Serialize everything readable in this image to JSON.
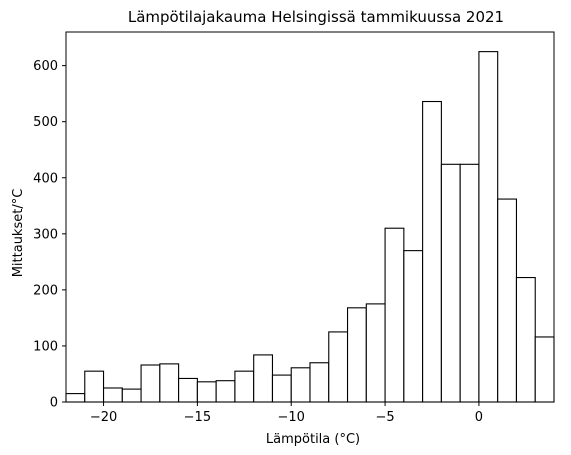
{
  "chart_data": {
    "type": "bar",
    "title": "Lämpötilajakauma Helsingissä tammikuussa 2021",
    "xlabel": "Lämpötila (°C)",
    "ylabel": "Mittaukset/°C",
    "xlim": [
      -22,
      4
    ],
    "ylim": [
      0,
      660
    ],
    "grid": false,
    "bin_width": 1,
    "bins": [
      {
        "x0": -22,
        "x1": -21,
        "value": 15
      },
      {
        "x0": -21,
        "x1": -20,
        "value": 55
      },
      {
        "x0": -20,
        "x1": -19,
        "value": 25
      },
      {
        "x0": -19,
        "x1": -18,
        "value": 23
      },
      {
        "x0": -18,
        "x1": -17,
        "value": 66
      },
      {
        "x0": -17,
        "x1": -16,
        "value": 68
      },
      {
        "x0": -16,
        "x1": -15,
        "value": 42
      },
      {
        "x0": -15,
        "x1": -14,
        "value": 36
      },
      {
        "x0": -14,
        "x1": -13,
        "value": 38
      },
      {
        "x0": -13,
        "x1": -12,
        "value": 55
      },
      {
        "x0": -12,
        "x1": -11,
        "value": 84
      },
      {
        "x0": -11,
        "x1": -10,
        "value": 48
      },
      {
        "x0": -10,
        "x1": -9,
        "value": 61
      },
      {
        "x0": -9,
        "x1": -8,
        "value": 70
      },
      {
        "x0": -8,
        "x1": -7,
        "value": 125
      },
      {
        "x0": -7,
        "x1": -6,
        "value": 168
      },
      {
        "x0": -6,
        "x1": -5,
        "value": 175
      },
      {
        "x0": -5,
        "x1": -4,
        "value": 310
      },
      {
        "x0": -4,
        "x1": -3,
        "value": 270
      },
      {
        "x0": -3,
        "x1": -2,
        "value": 536
      },
      {
        "x0": -2,
        "x1": -1,
        "value": 424
      },
      {
        "x0": -1,
        "x1": 0,
        "value": 424
      },
      {
        "x0": 0,
        "x1": 1,
        "value": 625
      },
      {
        "x0": 1,
        "x1": 2,
        "value": 362
      },
      {
        "x0": 2,
        "x1": 3,
        "value": 222
      },
      {
        "x0": 3,
        "x1": 4,
        "value": 116
      }
    ],
    "xticks": [
      -20,
      -15,
      -10,
      -5,
      0
    ],
    "xtick_labels": [
      "−20",
      "−15",
      "−10",
      "−5",
      "0"
    ],
    "yticks": [
      0,
      100,
      200,
      300,
      400,
      500,
      600
    ],
    "ytick_labels": [
      "0",
      "100",
      "200",
      "300",
      "400",
      "500",
      "600"
    ],
    "bar_fill": "#ffffff",
    "bar_edge": "#000000"
  }
}
